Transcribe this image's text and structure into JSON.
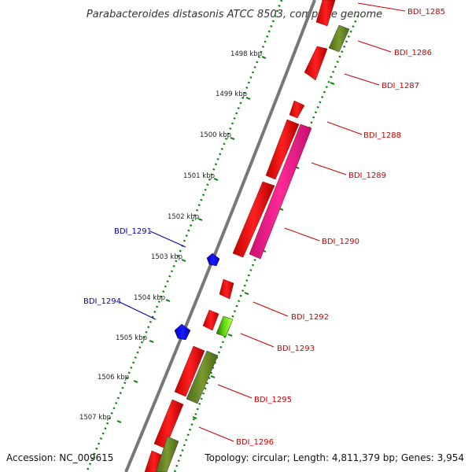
{
  "title": "Parabacteroides distasonis ATCC 8503, complete genome",
  "footer": {
    "accession": "Accession: NC_009615",
    "topology": "Topology: circular; Length: 4,811,379 bp; Genes: 3,954"
  },
  "kbp_labels": [
    "1498 kbp",
    "1499 kbp",
    "1500 kbp",
    "1501 kbp",
    "1502 kbp",
    "1503 kbp",
    "1504 kbp",
    "1505 kbp",
    "1506 kbp",
    "1507 kbp"
  ],
  "gene_labels_right": [
    "BDI_1285",
    "BDI_1286",
    "BDI_1287",
    "BDI_1288",
    "BDI_1289",
    "BDI_1290",
    "BDI_1292",
    "BDI_1293",
    "BDI_1295",
    "BDI_1296"
  ],
  "gene_labels_left": [
    "BDI_1291",
    "BDI_1294"
  ],
  "colors": {
    "red_gene": "#ff0000",
    "olive_gene": "#6b8e23",
    "magenta_gene": "#ff1493",
    "blue_gene": "#0000ff",
    "green_gene": "#33aa00",
    "tick_green": "#008000",
    "backbone": "#777777",
    "label_red": "#cc0000",
    "label_blue": "#0000aa"
  }
}
